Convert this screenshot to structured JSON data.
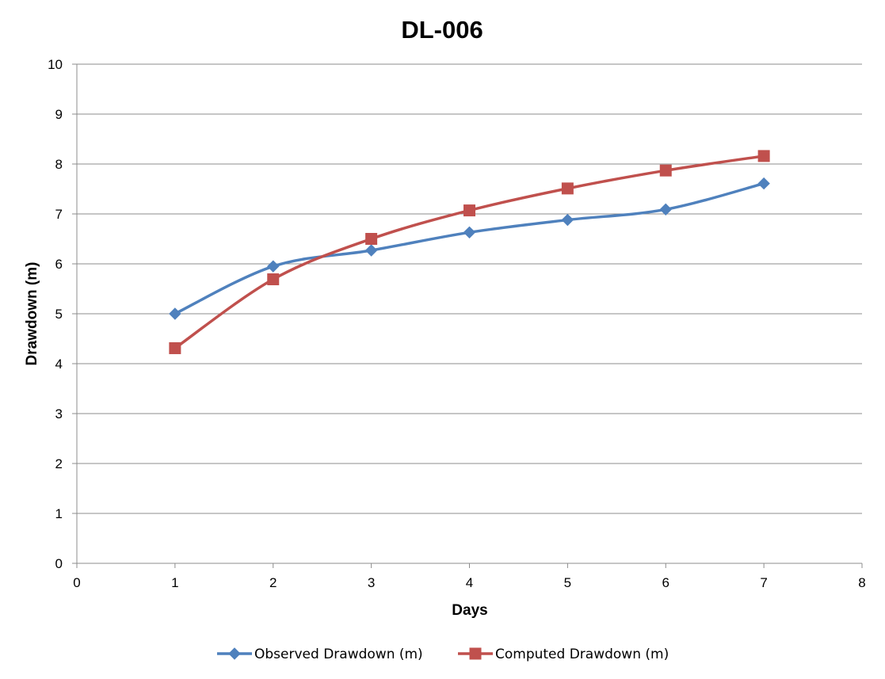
{
  "chart_data": {
    "type": "line",
    "title": "DL-006",
    "xlabel": "Days",
    "ylabel": "Drawdown (m)",
    "xlim": [
      0,
      8
    ],
    "ylim": [
      0,
      10
    ],
    "xticks": [
      0,
      1,
      2,
      3,
      4,
      5,
      6,
      7,
      8
    ],
    "yticks": [
      0,
      1,
      2,
      3,
      4,
      5,
      6,
      7,
      8,
      9,
      10
    ],
    "grid": "horizontal",
    "legend_position": "bottom",
    "x": [
      1,
      2,
      3,
      4,
      5,
      6,
      7
    ],
    "series": [
      {
        "name": "Observed Drawdown (m)",
        "values": [
          5.0,
          5.95,
          6.27,
          6.63,
          6.88,
          7.09,
          7.61
        ],
        "color": "#4F81BD",
        "marker": "diamond"
      },
      {
        "name": "Computed Drawdown (m)",
        "values": [
          4.31,
          5.69,
          6.5,
          7.07,
          7.51,
          7.87,
          8.16
        ],
        "color": "#C0504D",
        "marker": "square"
      }
    ]
  }
}
